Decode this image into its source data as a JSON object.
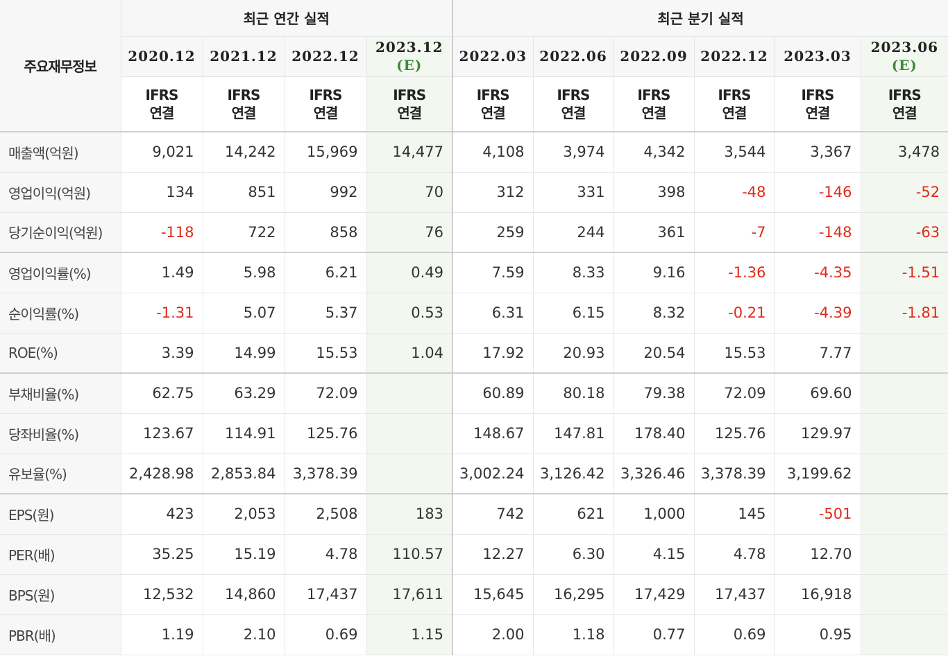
{
  "corner_label": "주요재무정보",
  "groups": {
    "annual": "최근 연간 실적",
    "quarter": "최근 분기 실적"
  },
  "periods": [
    {
      "date": "2020.12",
      "est": ""
    },
    {
      "date": "2021.12",
      "est": ""
    },
    {
      "date": "2022.12",
      "est": ""
    },
    {
      "date": "2023.12",
      "est": "(E)"
    },
    {
      "date": "2022.03",
      "est": ""
    },
    {
      "date": "2022.06",
      "est": ""
    },
    {
      "date": "2022.09",
      "est": ""
    },
    {
      "date": "2022.12",
      "est": ""
    },
    {
      "date": "2023.03",
      "est": ""
    },
    {
      "date": "2023.06",
      "est": "(E)"
    }
  ],
  "ifrs": {
    "line1": "IFRS",
    "line2": "연결"
  },
  "rows": [
    {
      "label": "매출액(억원)",
      "values": [
        "9,021",
        "14,242",
        "15,969",
        "14,477",
        "4,108",
        "3,974",
        "4,342",
        "3,544",
        "3,367",
        "3,478"
      ]
    },
    {
      "label": "영업이익(억원)",
      "values": [
        "134",
        "851",
        "992",
        "70",
        "312",
        "331",
        "398",
        "-48",
        "-146",
        "-52"
      ]
    },
    {
      "label": "당기순이익(억원)",
      "values": [
        "-118",
        "722",
        "858",
        "76",
        "259",
        "244",
        "361",
        "-7",
        "-148",
        "-63"
      ]
    },
    {
      "label": "영업이익률(%)",
      "values": [
        "1.49",
        "5.98",
        "6.21",
        "0.49",
        "7.59",
        "8.33",
        "9.16",
        "-1.36",
        "-4.35",
        "-1.51"
      ]
    },
    {
      "label": "순이익률(%)",
      "values": [
        "-1.31",
        "5.07",
        "5.37",
        "0.53",
        "6.31",
        "6.15",
        "8.32",
        "-0.21",
        "-4.39",
        "-1.81"
      ]
    },
    {
      "label": "ROE(%)",
      "values": [
        "3.39",
        "14.99",
        "15.53",
        "1.04",
        "17.92",
        "20.93",
        "20.54",
        "15.53",
        "7.77",
        ""
      ]
    },
    {
      "label": "부채비율(%)",
      "values": [
        "62.75",
        "63.29",
        "72.09",
        "",
        "60.89",
        "80.18",
        "79.38",
        "72.09",
        "69.60",
        ""
      ]
    },
    {
      "label": "당좌비율(%)",
      "values": [
        "123.67",
        "114.91",
        "125.76",
        "",
        "148.67",
        "147.81",
        "178.40",
        "125.76",
        "129.97",
        ""
      ]
    },
    {
      "label": "유보율(%)",
      "values": [
        "2,428.98",
        "2,853.84",
        "3,378.39",
        "",
        "3,002.24",
        "3,126.42",
        "3,326.46",
        "3,378.39",
        "3,199.62",
        ""
      ]
    },
    {
      "label": "EPS(원)",
      "values": [
        "423",
        "2,053",
        "2,508",
        "183",
        "742",
        "621",
        "1,000",
        "145",
        "-501",
        ""
      ]
    },
    {
      "label": "PER(배)",
      "values": [
        "35.25",
        "15.19",
        "4.78",
        "110.57",
        "12.27",
        "6.30",
        "4.15",
        "4.78",
        "12.70",
        ""
      ]
    },
    {
      "label": "BPS(원)",
      "values": [
        "12,532",
        "14,860",
        "17,437",
        "17,611",
        "15,645",
        "16,295",
        "17,429",
        "17,437",
        "16,918",
        ""
      ]
    },
    {
      "label": "PBR(배)",
      "values": [
        "1.19",
        "2.10",
        "0.69",
        "1.15",
        "2.00",
        "1.18",
        "0.77",
        "0.69",
        "0.95",
        ""
      ]
    }
  ],
  "colors": {
    "negative": "#e02a1a",
    "ifrs": "#e9692c",
    "estimate_bg": "#f2f8ef",
    "estimate_mark": "#3a8a3a"
  }
}
